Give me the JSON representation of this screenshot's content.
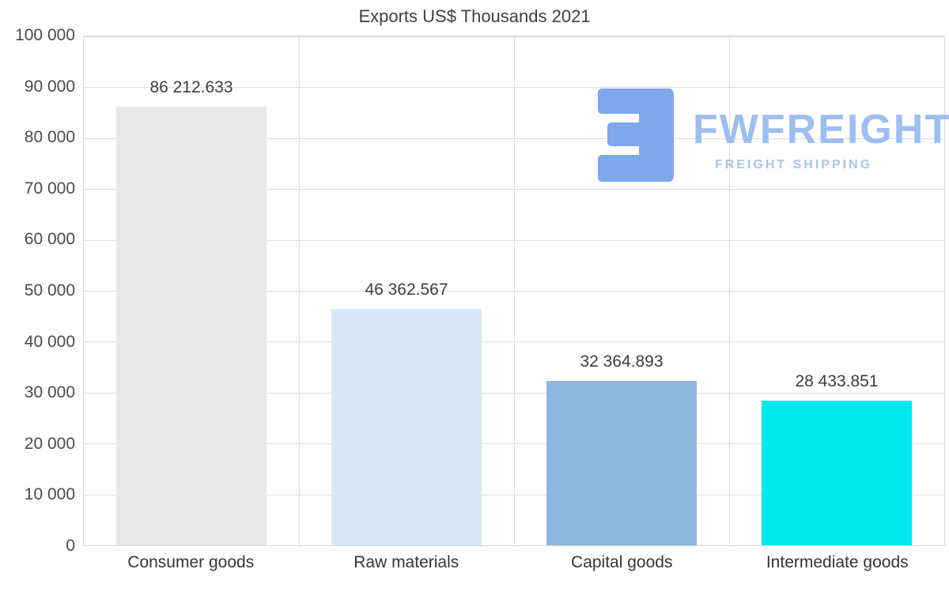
{
  "title": "Exports US$ Thousands 2021",
  "watermark": {
    "brand": "FWFREIGHT",
    "tagline": "FREIGHT SHIPPING",
    "icon": "fwfreight-logo-icon",
    "icon_color": "#7da8ea",
    "brand_color": "#9dbeee",
    "tagline_color": "#a9c4ec"
  },
  "chart_data": {
    "type": "bar",
    "title": "Exports US$ Thousands 2021",
    "categories": [
      "Consumer goods",
      "Raw materials",
      "Capital goods",
      "Intermediate goods"
    ],
    "values": [
      86212.633,
      46362.567,
      32364.893,
      28433.851
    ],
    "value_labels": [
      "86 212.633",
      "46 362.567",
      "32 364.893",
      "28 433.851"
    ],
    "bar_colors": [
      "#e8e8e8",
      "#d8e7f8",
      "#8cb8dd",
      "#00e8f0"
    ],
    "xlabel": "",
    "ylabel": "",
    "ylim": [
      0,
      100000
    ],
    "ytick_values": [
      0,
      10000,
      20000,
      30000,
      40000,
      50000,
      60000,
      70000,
      80000,
      90000,
      100000
    ],
    "ytick_labels": [
      "0",
      "10 000",
      "20 000",
      "30 000",
      "40 000",
      "50 000",
      "60 000",
      "70 000",
      "80 000",
      "90 000",
      "100 000"
    ],
    "grid": true,
    "legend_position": "none"
  }
}
